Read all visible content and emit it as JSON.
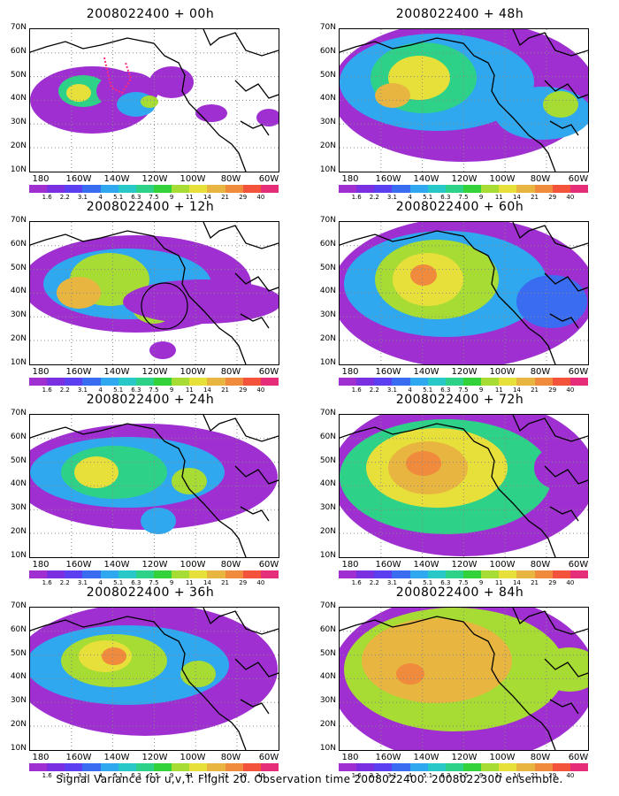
{
  "panels": [
    {
      "title": "2008022400  + 00h"
    },
    {
      "title": "2008022400  + 48h"
    },
    {
      "title": "2008022400  + 12h"
    },
    {
      "title": "2008022400  + 60h"
    },
    {
      "title": "2008022400  + 24h"
    },
    {
      "title": "2008022400  + 72h"
    },
    {
      "title": "2008022400  + 36h"
    },
    {
      "title": "2008022400  + 84h"
    }
  ],
  "y_labels": [
    "70N",
    "60N",
    "50N",
    "40N",
    "30N",
    "20N",
    "10N"
  ],
  "x_labels": [
    "180",
    "160W",
    "140W",
    "120W",
    "100W",
    "80W",
    "60W"
  ],
  "colorbar": {
    "labels": [
      "1.6",
      "2.2",
      "3.1",
      "4",
      "5.1",
      "6.3",
      "7.5",
      "9",
      "11",
      "14",
      "21",
      "29",
      "40"
    ],
    "colors": [
      "#9f2fd1",
      "#7a2fe0",
      "#5b3ff0",
      "#3a6cf2",
      "#2fa8f0",
      "#29c8c8",
      "#2ed188",
      "#33d23a",
      "#a6dc33",
      "#e8e03a",
      "#e8b640",
      "#f08a3c",
      "#f3533a",
      "#e62d7a"
    ]
  },
  "caption": "Signal Variance for u,v,T. Flight 20. Observation time 2008022400. 2008022300 ensemble."
}
